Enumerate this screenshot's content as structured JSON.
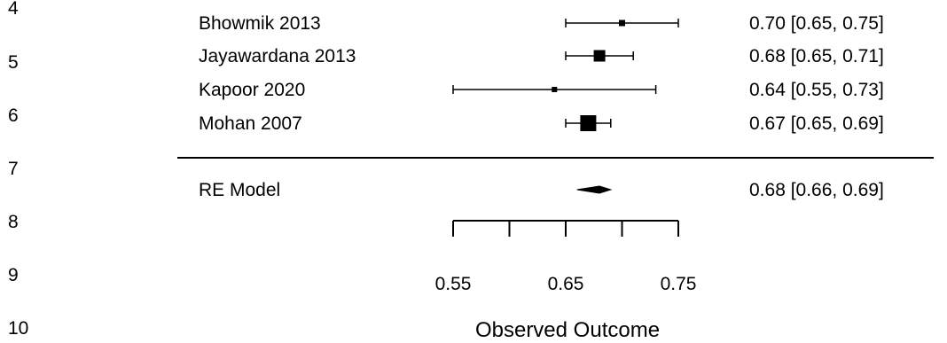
{
  "line_numbers": [
    "4",
    "5",
    "6",
    "7",
    "8",
    "9",
    "10"
  ],
  "chart_data": {
    "type": "forest",
    "title": "",
    "xlabel": "Observed Outcome",
    "xlim": [
      0.55,
      0.75
    ],
    "ticks": [
      0.55,
      0.6,
      0.65,
      0.7,
      0.75
    ],
    "tick_labels": [
      "0.55",
      "0.65",
      "0.75"
    ],
    "labeled_ticks": [
      0.55,
      0.65,
      0.75
    ],
    "studies": [
      {
        "label": "Bhowmik 2013",
        "estimate": 0.7,
        "lower": 0.65,
        "upper": 0.75,
        "ci_text": "0.70 [0.65, 0.75]"
      },
      {
        "label": "Jayawardana 2013",
        "estimate": 0.68,
        "lower": 0.65,
        "upper": 0.71,
        "ci_text": "0.68 [0.65, 0.71]"
      },
      {
        "label": "Kapoor 2020",
        "estimate": 0.64,
        "lower": 0.55,
        "upper": 0.73,
        "ci_text": "0.64 [0.55, 0.73]"
      },
      {
        "label": "Mohan 2007",
        "estimate": 0.67,
        "lower": 0.65,
        "upper": 0.69,
        "ci_text": "0.67 [0.65, 0.69]"
      }
    ],
    "summary": {
      "label": "RE Model",
      "estimate": 0.68,
      "lower": 0.66,
      "upper": 0.69,
      "ci_text": "0.68 [0.66, 0.69]"
    }
  }
}
